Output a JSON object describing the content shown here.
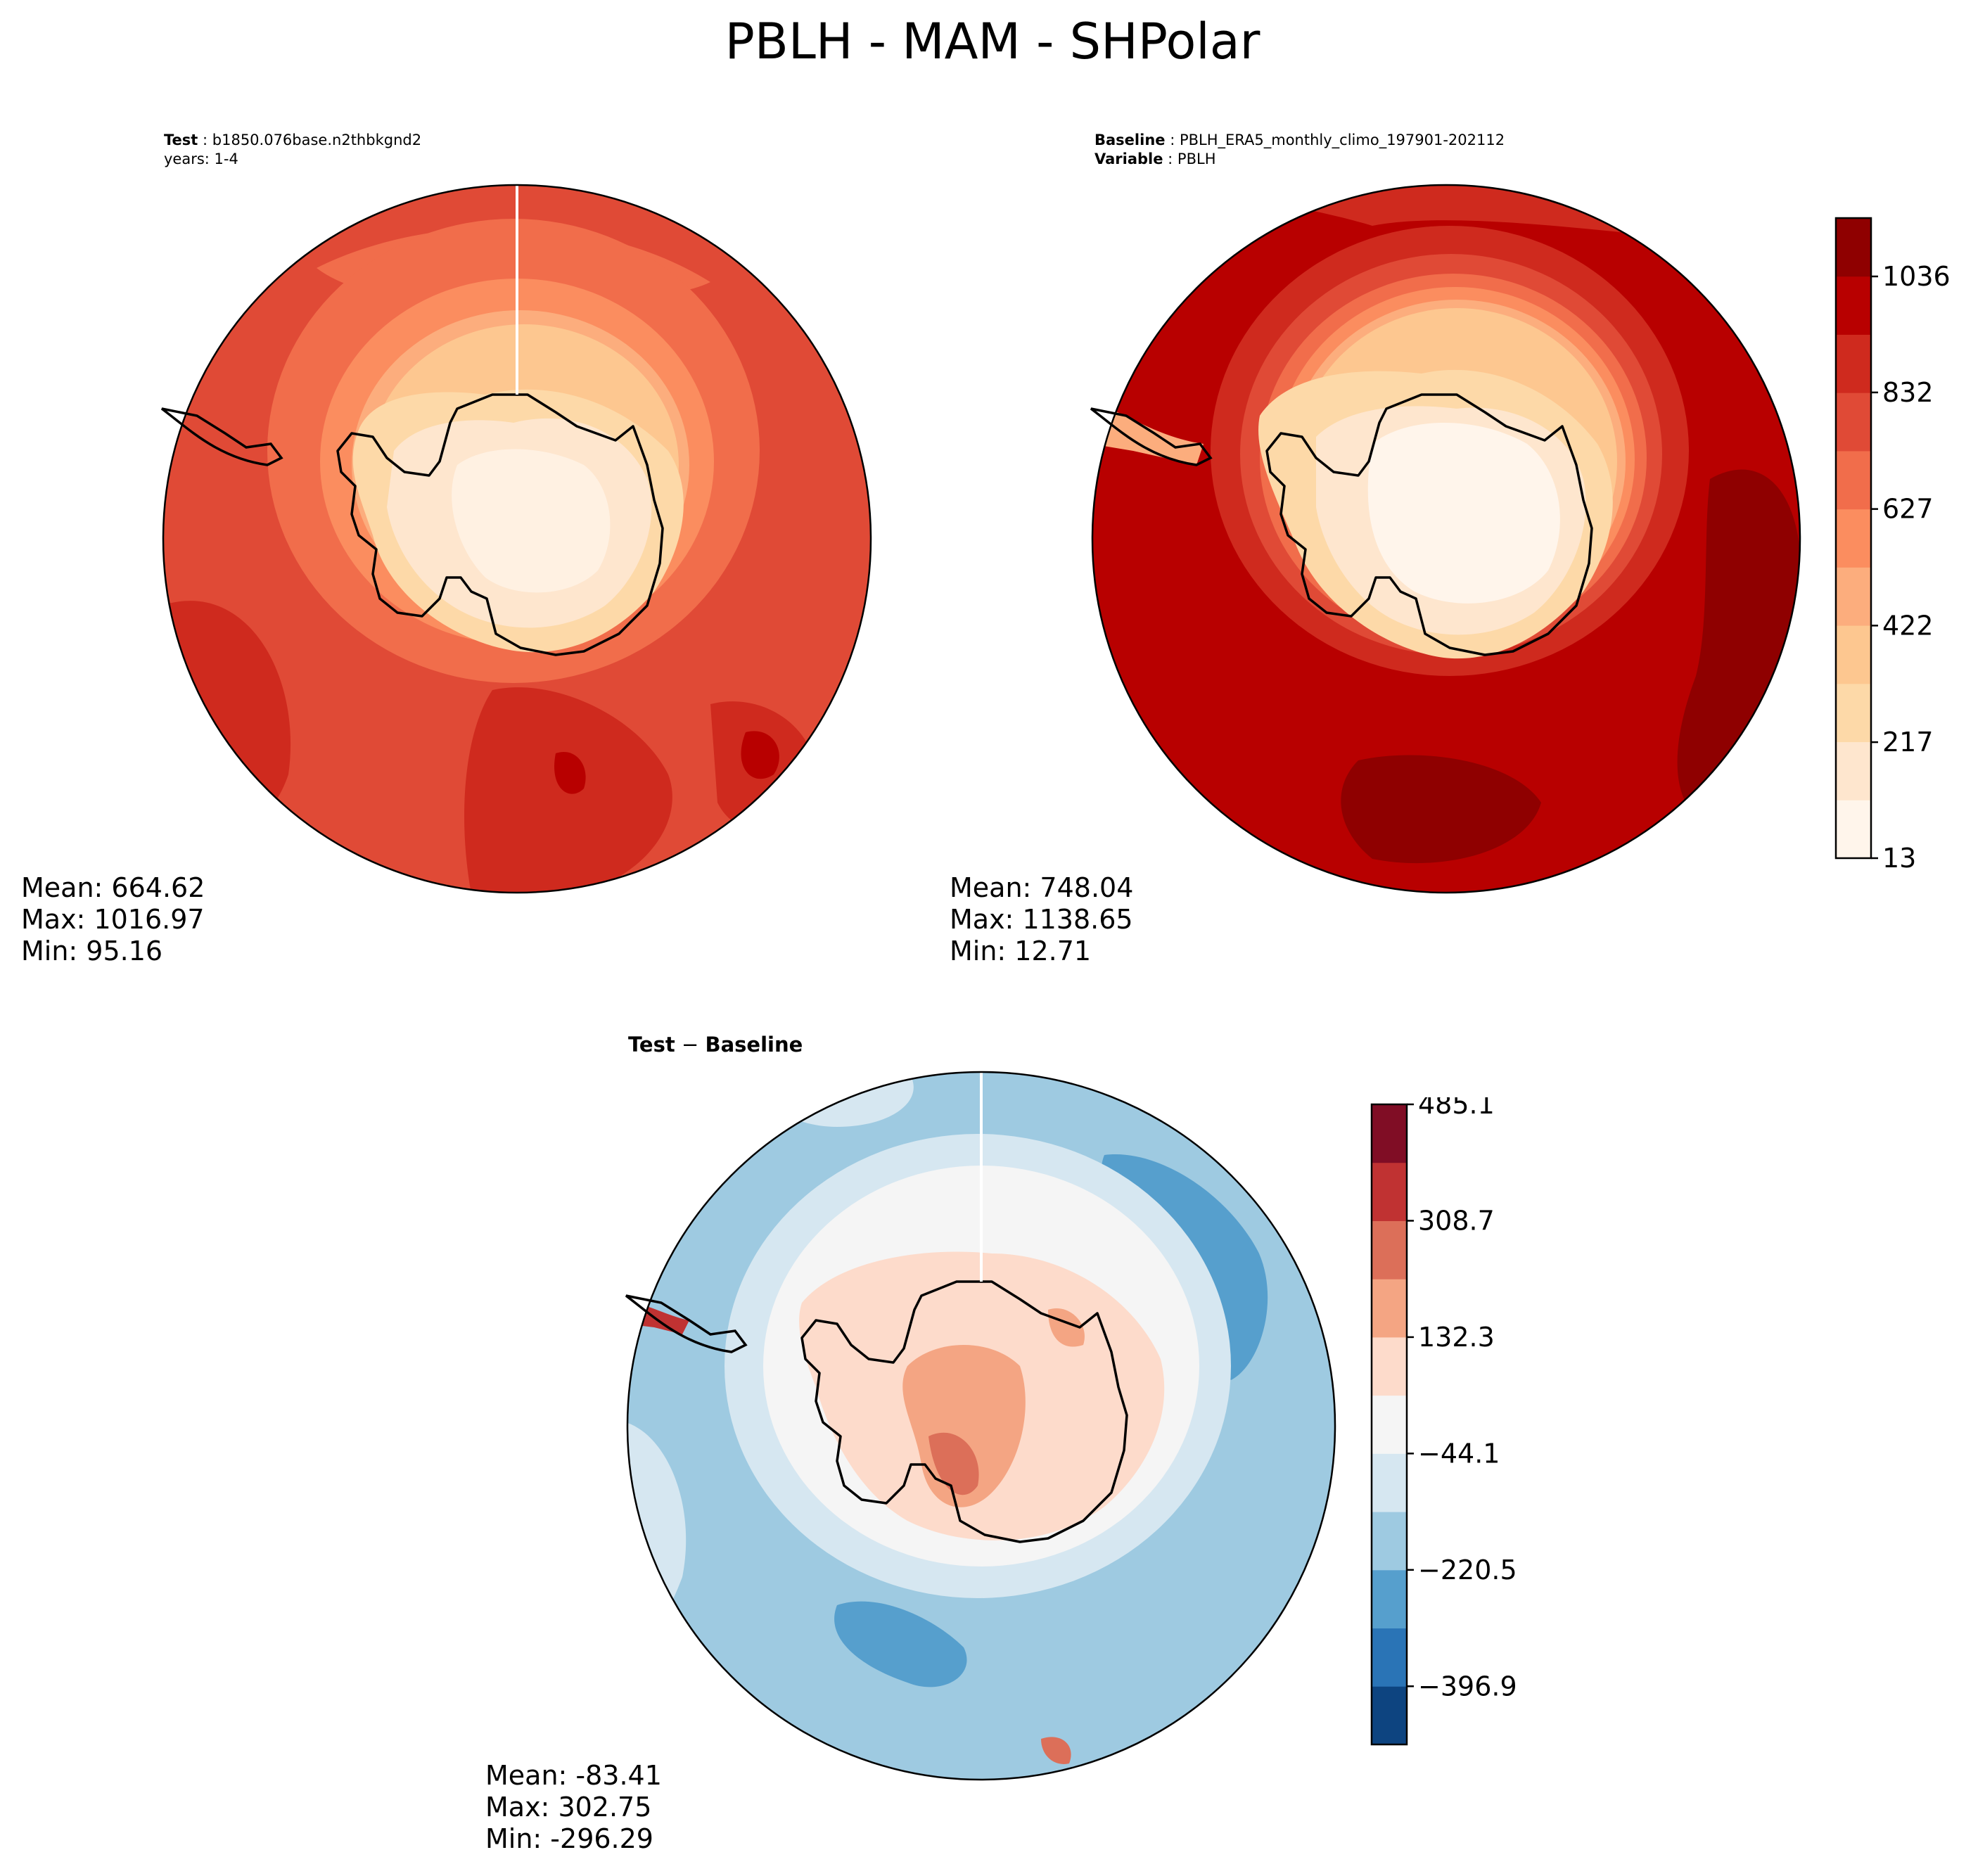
{
  "title": "PBLH - MAM - SHPolar",
  "panels": {
    "test": {
      "label_bold": "Test",
      "label_value": "b1850.076base.n2thbkgnd2",
      "subtitle": "years: 1-4",
      "stats": {
        "mean": "Mean: 664.62",
        "max": "Max: 1016.97",
        "min": "Min: 95.16"
      }
    },
    "baseline": {
      "label_bold": "Baseline",
      "label_value": "PBLH_ERA5_monthly_climo_197901-202112",
      "variable_bold": "Variable",
      "variable_value": "PBLH",
      "stats": {
        "mean": "Mean: 748.04",
        "max": "Max: 1138.65",
        "min": "Min: 12.71"
      }
    },
    "diff": {
      "title_bold_1": "Test",
      "title_sep": " − ",
      "title_bold_2": "Baseline",
      "stats": {
        "mean": "Mean: -83.41",
        "max": "Max: 302.75",
        "min": "Min: -296.29"
      }
    }
  },
  "colors": {
    "reds": [
      "#fff5eb",
      "#fee6ce",
      "#fdd9a8",
      "#fdc790",
      "#fcad7d",
      "#fb8d5f",
      "#f16d4b",
      "#e04a36",
      "#cf2a1e",
      "#b80000",
      "#8f0000"
    ],
    "diverging": [
      "#0d4480",
      "#2a74b6",
      "#569fcd",
      "#9ecae1",
      "#d6e7f1",
      "#f5f5f5",
      "#fddbcb",
      "#f4a583",
      "#dc6f59",
      "#c03232",
      "#800d25"
    ]
  },
  "chart_data": [
    {
      "type": "heatmap",
      "name": "Test",
      "projection": "south-polar-stereographic",
      "variable": "PBLH",
      "season": "MAM",
      "mean": 664.62,
      "max": 1016.97,
      "min": 95.16,
      "colorbar": "shared-with-baseline"
    },
    {
      "type": "heatmap",
      "name": "Baseline",
      "projection": "south-polar-stereographic",
      "variable": "PBLH",
      "mean": 748.04,
      "max": 1138.65,
      "min": 12.71,
      "colorbar": {
        "ticks": [
          13,
          217,
          422,
          627,
          832,
          1036
        ],
        "tick_labels": [
          "13",
          "217",
          "422",
          "627",
          "832",
          "1036"
        ],
        "range": [
          13,
          1138.65
        ],
        "levels": 11
      }
    },
    {
      "type": "heatmap",
      "name": "Test − Baseline",
      "projection": "south-polar-stereographic",
      "variable": "PBLH",
      "mean": -83.41,
      "max": 302.75,
      "min": -296.29,
      "colorbar": {
        "ticks": [
          -396.9,
          -220.5,
          -44.1,
          132.3,
          308.7,
          485.1
        ],
        "tick_labels": [
          "−396.9",
          "−220.5",
          "−44.1",
          "132.3",
          "308.7",
          "485.1"
        ],
        "range": [
          -485.1,
          485.1
        ],
        "levels": 11
      }
    }
  ]
}
